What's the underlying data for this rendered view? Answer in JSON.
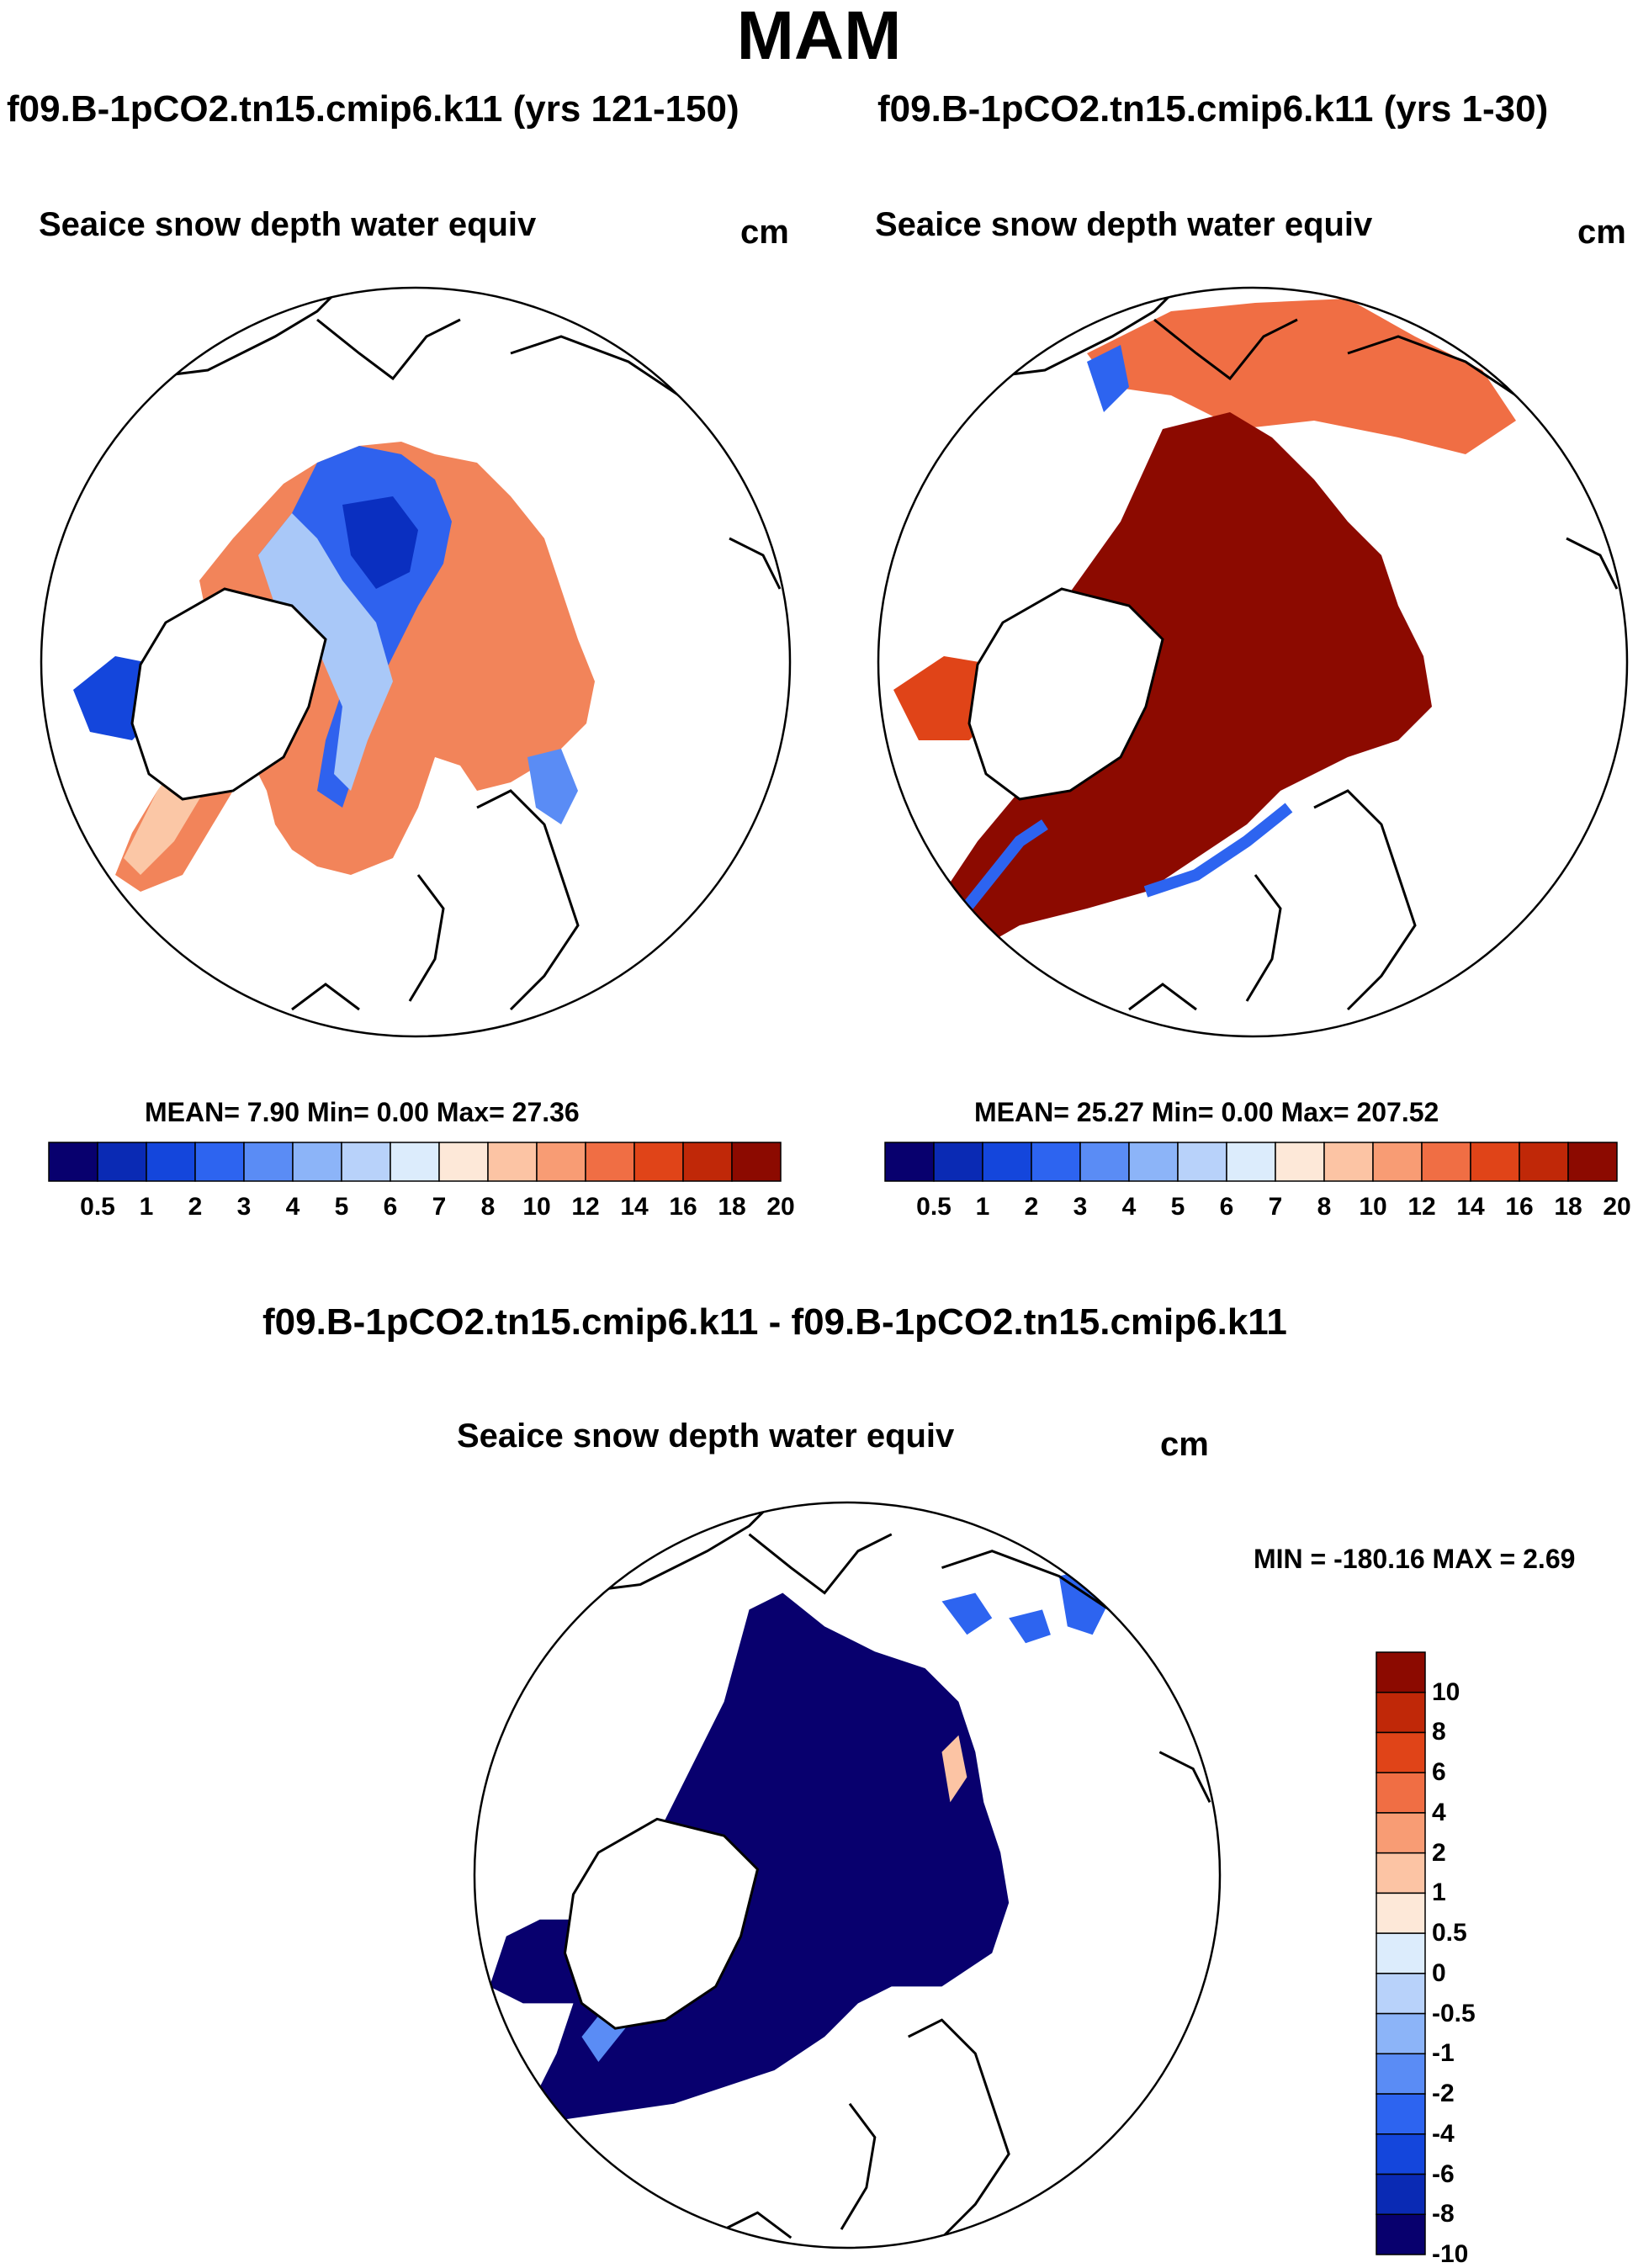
{
  "figure": {
    "title": "MAM"
  },
  "panels": [
    {
      "run": "f09.B-1pCO2.tn15.cmip6.k11 (yrs 121-150)",
      "variable": "Seaice snow depth water equiv",
      "units": "cm",
      "stats": "MEAN=   7.90   Min=    0.00   Max=  27.36"
    },
    {
      "run": "f09.B-1pCO2.tn15.cmip6.k11 (yrs 1-30)",
      "variable": "Seaice snow depth water equiv",
      "units": "cm",
      "stats": "MEAN=  25.27   Min=    0.00   Max= 207.52"
    },
    {
      "run": "f09.B-1pCO2.tn15.cmip6.k11 - f09.B-1pCO2.tn15.cmip6.k11",
      "variable": "Seaice snow depth water equiv",
      "units": "cm",
      "stats": "MIN = -180.16 MAX =    2.69"
    }
  ],
  "colorbars": {
    "absolute": {
      "labels": [
        "0.5",
        "1",
        "2",
        "3",
        "4",
        "5",
        "6",
        "7",
        "8",
        "10",
        "12",
        "14",
        "16",
        "18",
        "20"
      ],
      "colors": [
        "#08006e",
        "#0a2ab4",
        "#1446dc",
        "#2d64f0",
        "#5a8cf5",
        "#8cb4f8",
        "#b8d2fa",
        "#dcecfc",
        "#fde8d8",
        "#fcc4a4",
        "#f89c74",
        "#f06e44",
        "#e04418",
        "#c02808",
        "#8c0a00"
      ]
    },
    "difference": {
      "labels": [
        "10",
        "8",
        "6",
        "4",
        "2",
        "1",
        "0.5",
        "0",
        "-0.5",
        "-1",
        "-2",
        "-4",
        "-6",
        "-8",
        "-10"
      ],
      "colors": [
        "#8c0a00",
        "#c02808",
        "#e04418",
        "#f06e44",
        "#f89c74",
        "#fcc4a4",
        "#fde8d8",
        "#dcecfc",
        "#b8d2fa",
        "#8cb4f8",
        "#5a8cf5",
        "#2d64f0",
        "#1446dc",
        "#0a2ab4",
        "#08006e"
      ]
    }
  }
}
